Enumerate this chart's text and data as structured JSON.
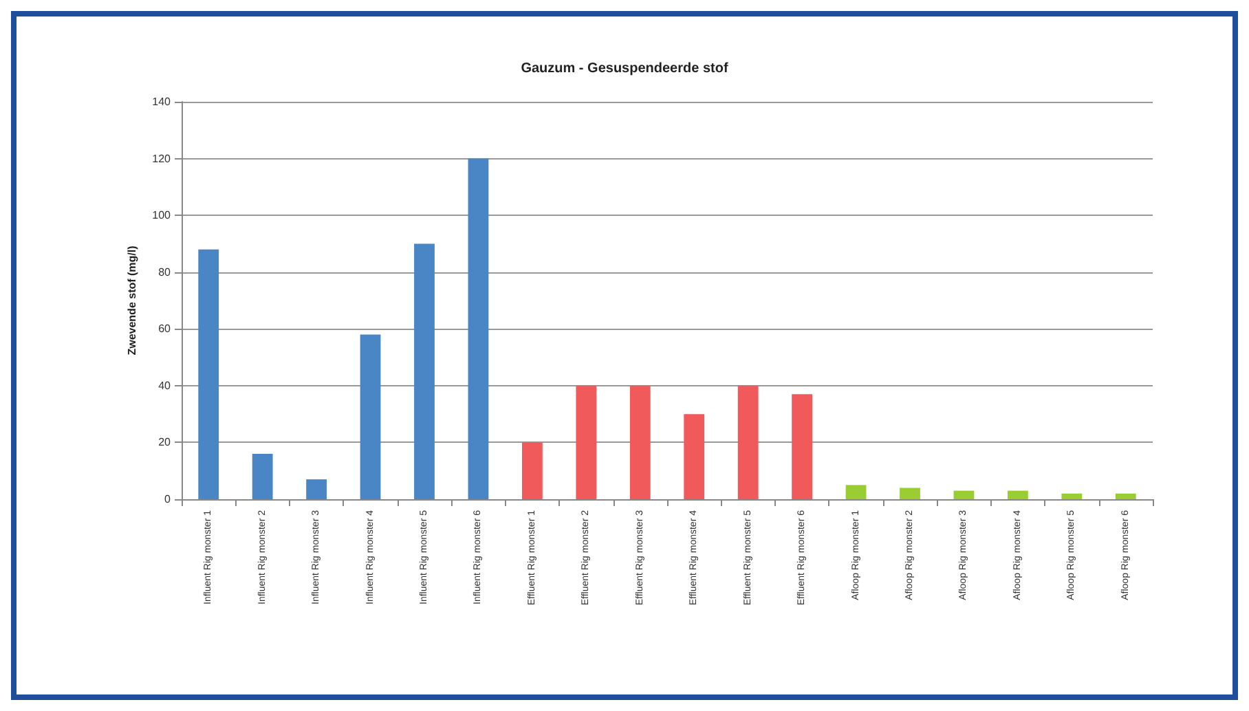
{
  "chart_data": {
    "type": "bar",
    "title": "Gauzum - Gesuspendeerde stof",
    "ylabel": "Zwevende stof (mg/l)",
    "categories": [
      "Influent Rig monster 1",
      "Influent Rig monster 2",
      "Influent Rig monster 3",
      "Influent Rig monster 4",
      "Influent Rig monster 5",
      "Influent Rig monster 6",
      "Effluent Rig monster 1",
      "Effluent Rig monster 2",
      "Effluent Rig monster 3",
      "Effluent Rig monster 4",
      "Effluent Rig monster 5",
      "Effluent Rig monster 6",
      "Afloop Rig monster 1",
      "Afloop Rig monster 2",
      "Afloop Rig monster 3",
      "Afloop Rig monster 4",
      "Afloop Rig monster 5",
      "Afloop Rig monster 6"
    ],
    "values": [
      88,
      16,
      7,
      58,
      90,
      120,
      20,
      40,
      40,
      30,
      40,
      37,
      5,
      4,
      3,
      3,
      2,
      2
    ],
    "colors": [
      "#4a86c5",
      "#4a86c5",
      "#4a86c5",
      "#4a86c5",
      "#4a86c5",
      "#4a86c5",
      "#f05a5a",
      "#f05a5a",
      "#f05a5a",
      "#f05a5a",
      "#f05a5a",
      "#f05a5a",
      "#9acd32",
      "#9acd32",
      "#9acd32",
      "#9acd32",
      "#9acd32",
      "#9acd32"
    ],
    "ylim": [
      0,
      140
    ],
    "yticks": [
      0,
      20,
      40,
      60,
      80,
      100,
      120,
      140
    ],
    "grid": "y"
  }
}
